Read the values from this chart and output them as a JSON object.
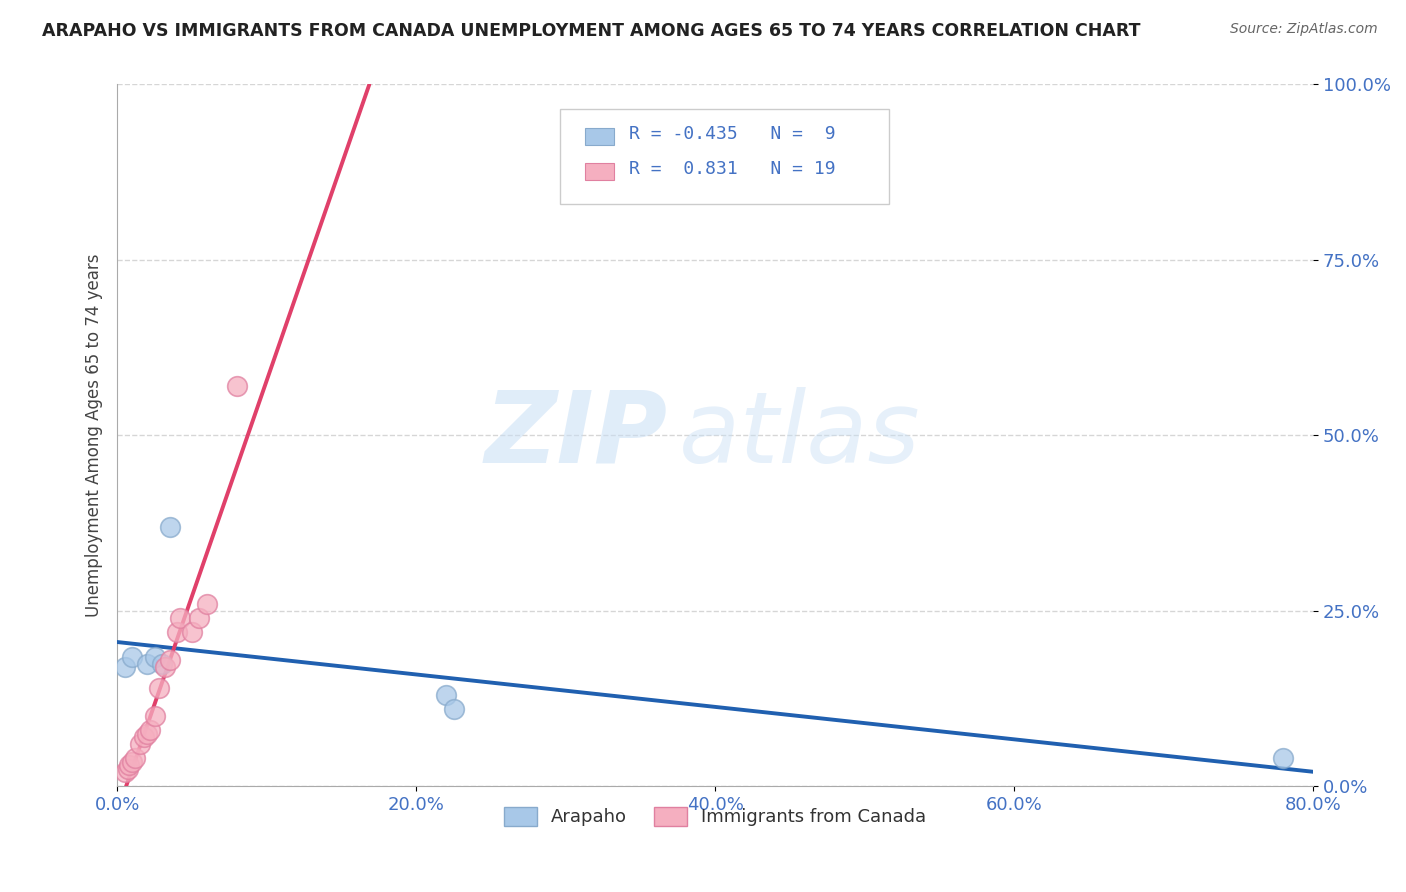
{
  "title": "ARAPAHO VS IMMIGRANTS FROM CANADA UNEMPLOYMENT AMONG AGES 65 TO 74 YEARS CORRELATION CHART",
  "source_text": "Source: ZipAtlas.com",
  "ylabel": "Unemployment Among Ages 65 to 74 years",
  "xlim": [
    0.0,
    0.8
  ],
  "ylim": [
    0.0,
    1.0
  ],
  "xticks": [
    0.0,
    0.2,
    0.4,
    0.6,
    0.8
  ],
  "xtick_labels": [
    "0.0%",
    "20.0%",
    "40.0%",
    "60.0%",
    "80.0%"
  ],
  "yticks": [
    0.0,
    0.25,
    0.5,
    0.75,
    1.0
  ],
  "ytick_labels": [
    "0.0%",
    "25.0%",
    "50.0%",
    "75.0%",
    "100.0%"
  ],
  "arapaho_x": [
    0.005,
    0.01,
    0.02,
    0.025,
    0.03,
    0.035,
    0.22,
    0.225,
    0.78
  ],
  "arapaho_y": [
    0.17,
    0.185,
    0.175,
    0.185,
    0.175,
    0.37,
    0.13,
    0.11,
    0.04
  ],
  "canada_x": [
    0.005,
    0.007,
    0.008,
    0.01,
    0.012,
    0.015,
    0.018,
    0.02,
    0.022,
    0.025,
    0.028,
    0.032,
    0.035,
    0.04,
    0.042,
    0.05,
    0.055,
    0.06,
    0.08
  ],
  "canada_y": [
    0.02,
    0.025,
    0.03,
    0.035,
    0.04,
    0.06,
    0.07,
    0.075,
    0.08,
    0.1,
    0.14,
    0.17,
    0.18,
    0.22,
    0.24,
    0.22,
    0.24,
    0.26,
    0.57
  ],
  "arapaho_color": "#a8c8e8",
  "canada_color": "#f5afc0",
  "arapaho_edge": "#88aacc",
  "canada_edge": "#e080a0",
  "arapaho_line_color": "#2060b0",
  "canada_line_color": "#e0406a",
  "R_arapaho": -0.435,
  "N_arapaho": 9,
  "R_canada": 0.831,
  "N_canada": 19,
  "watermark_zip": "ZIP",
  "watermark_atlas": "atlas",
  "background_color": "#ffffff",
  "grid_color": "#cccccc",
  "tick_color": "#4472c4",
  "title_color": "#222222",
  "label_color": "#444444",
  "source_color": "#666666"
}
